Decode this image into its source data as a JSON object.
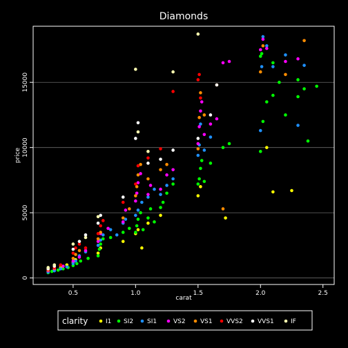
{
  "chart_data": {
    "type": "scatter",
    "title": "Diamonds",
    "xlabel": "carat",
    "ylabel": "price",
    "xlim": [
      0.18,
      2.59
    ],
    "ylim": [
      -500,
      19300
    ],
    "x_ticks": [
      0.5,
      1.0,
      1.5,
      2.0,
      2.5
    ],
    "x_tick_labels": [
      "0.5",
      "1.0",
      "1.5",
      "2.0",
      "2.5"
    ],
    "y_ticks": [
      0,
      5000,
      10000,
      15000
    ],
    "y_tick_labels": [
      "0",
      "5000",
      "10000",
      "15000"
    ],
    "grid": "horizontal",
    "legend_placement": "bottom",
    "legend_title": "clarity",
    "series": [
      {
        "name": "I1",
        "color": "#FFFF00",
        "points": [
          [
            0.3,
            500
          ],
          [
            0.35,
            650
          ],
          [
            0.4,
            800
          ],
          [
            0.45,
            1000
          ],
          [
            0.5,
            1200
          ],
          [
            0.52,
            1400
          ],
          [
            0.7,
            1900
          ],
          [
            0.72,
            2300
          ],
          [
            0.9,
            2800
          ],
          [
            1.0,
            3400
          ],
          [
            1.02,
            3700
          ],
          [
            1.05,
            2300
          ],
          [
            1.1,
            4200
          ],
          [
            1.2,
            4800
          ],
          [
            1.5,
            6300
          ],
          [
            1.52,
            7000
          ],
          [
            1.72,
            4600
          ],
          [
            2.05,
            10000
          ],
          [
            2.1,
            6600
          ],
          [
            2.25,
            6700
          ]
        ]
      },
      {
        "name": "SI2",
        "color": "#00FF00",
        "points": [
          [
            0.3,
            400
          ],
          [
            0.33,
            500
          ],
          [
            0.38,
            600
          ],
          [
            0.42,
            700
          ],
          [
            0.46,
            800
          ],
          [
            0.5,
            950
          ],
          [
            0.53,
            1100
          ],
          [
            0.56,
            1300
          ],
          [
            0.62,
            1500
          ],
          [
            0.7,
            1700
          ],
          [
            0.71,
            2200
          ],
          [
            0.72,
            2600
          ],
          [
            0.74,
            3000
          ],
          [
            0.8,
            3100
          ],
          [
            0.9,
            3500
          ],
          [
            0.95,
            3800
          ],
          [
            1.0,
            3500
          ],
          [
            1.01,
            4000
          ],
          [
            1.02,
            4500
          ],
          [
            1.04,
            5000
          ],
          [
            1.06,
            3700
          ],
          [
            1.1,
            4600
          ],
          [
            1.12,
            5300
          ],
          [
            1.15,
            4300
          ],
          [
            1.2,
            5400
          ],
          [
            1.22,
            5800
          ],
          [
            1.25,
            6500
          ],
          [
            1.3,
            7200
          ],
          [
            1.5,
            7200
          ],
          [
            1.51,
            7600
          ],
          [
            1.52,
            8400
          ],
          [
            1.53,
            9000
          ],
          [
            1.55,
            7400
          ],
          [
            1.6,
            8800
          ],
          [
            1.7,
            10000
          ],
          [
            1.75,
            10300
          ],
          [
            2.0,
            9700
          ],
          [
            2.02,
            12000
          ],
          [
            2.05,
            13500
          ],
          [
            2.1,
            14000
          ],
          [
            2.15,
            15000
          ],
          [
            2.2,
            12500
          ],
          [
            2.3,
            13900
          ],
          [
            2.35,
            14500
          ],
          [
            2.45,
            14700
          ],
          [
            2.0,
            17000
          ],
          [
            2.01,
            17200
          ],
          [
            2.1,
            16500
          ],
          [
            2.3,
            15200
          ],
          [
            2.38,
            10500
          ]
        ]
      },
      {
        "name": "SI1",
        "color": "#1E90FF",
        "points": [
          [
            0.3,
            450
          ],
          [
            0.35,
            550
          ],
          [
            0.4,
            700
          ],
          [
            0.45,
            850
          ],
          [
            0.5,
            1100
          ],
          [
            0.52,
            1300
          ],
          [
            0.55,
            1700
          ],
          [
            0.6,
            2000
          ],
          [
            0.7,
            2500
          ],
          [
            0.72,
            2900
          ],
          [
            0.74,
            3300
          ],
          [
            0.8,
            3700
          ],
          [
            0.85,
            3300
          ],
          [
            0.9,
            4200
          ],
          [
            0.92,
            4500
          ],
          [
            1.0,
            4800
          ],
          [
            1.02,
            5200
          ],
          [
            1.05,
            5800
          ],
          [
            1.1,
            6200
          ],
          [
            1.15,
            6800
          ],
          [
            1.2,
            6400
          ],
          [
            1.25,
            7100
          ],
          [
            1.3,
            7600
          ],
          [
            1.5,
            9400
          ],
          [
            1.51,
            10200
          ],
          [
            1.52,
            11800
          ],
          [
            1.55,
            9800
          ],
          [
            1.6,
            10800
          ],
          [
            2.0,
            11300
          ],
          [
            2.01,
            16200
          ],
          [
            2.02,
            18500
          ],
          [
            2.05,
            17800
          ],
          [
            2.1,
            16200
          ],
          [
            2.2,
            17100
          ],
          [
            2.3,
            11700
          ],
          [
            2.35,
            16300
          ]
        ]
      },
      {
        "name": "VS2",
        "color": "#FF00FF",
        "points": [
          [
            0.3,
            550
          ],
          [
            0.35,
            700
          ],
          [
            0.42,
            900
          ],
          [
            0.5,
            1300
          ],
          [
            0.55,
            1600
          ],
          [
            0.6,
            2100
          ],
          [
            0.7,
            2800
          ],
          [
            0.72,
            3400
          ],
          [
            0.78,
            3800
          ],
          [
            0.9,
            4300
          ],
          [
            0.92,
            5200
          ],
          [
            1.0,
            5900
          ],
          [
            1.01,
            6500
          ],
          [
            1.02,
            7300
          ],
          [
            1.04,
            8000
          ],
          [
            1.1,
            6400
          ],
          [
            1.12,
            7100
          ],
          [
            1.2,
            6800
          ],
          [
            1.25,
            7900
          ],
          [
            1.3,
            8300
          ],
          [
            1.5,
            10300
          ],
          [
            1.51,
            11600
          ],
          [
            1.52,
            12800
          ],
          [
            1.53,
            13500
          ],
          [
            1.55,
            11000
          ],
          [
            1.6,
            11800
          ],
          [
            1.65,
            12200
          ],
          [
            1.7,
            16500
          ],
          [
            1.75,
            16600
          ],
          [
            2.0,
            17500
          ],
          [
            2.02,
            18300
          ],
          [
            2.05,
            17600
          ],
          [
            2.2,
            16600
          ],
          [
            2.3,
            16800
          ]
        ]
      },
      {
        "name": "VS1",
        "color": "#FF8C00",
        "points": [
          [
            0.3,
            600
          ],
          [
            0.35,
            750
          ],
          [
            0.4,
            950
          ],
          [
            0.5,
            1500
          ],
          [
            0.52,
            1800
          ],
          [
            0.55,
            2100
          ],
          [
            0.7,
            3000
          ],
          [
            0.72,
            3500
          ],
          [
            0.9,
            4600
          ],
          [
            0.95,
            5300
          ],
          [
            1.0,
            6300
          ],
          [
            1.01,
            7000
          ],
          [
            1.02,
            7900
          ],
          [
            1.04,
            8700
          ],
          [
            1.1,
            7600
          ],
          [
            1.2,
            8300
          ],
          [
            1.25,
            8700
          ],
          [
            1.5,
            9900
          ],
          [
            1.51,
            12300
          ],
          [
            1.52,
            14200
          ],
          [
            1.55,
            12500
          ],
          [
            1.65,
            14800
          ],
          [
            1.7,
            5300
          ],
          [
            2.0,
            15800
          ],
          [
            2.02,
            17800
          ],
          [
            2.2,
            15600
          ],
          [
            2.35,
            18200
          ]
        ]
      },
      {
        "name": "VVS2",
        "color": "#FF0000",
        "points": [
          [
            0.3,
            650
          ],
          [
            0.35,
            800
          ],
          [
            0.4,
            1000
          ],
          [
            0.5,
            1900
          ],
          [
            0.52,
            2300
          ],
          [
            0.55,
            2600
          ],
          [
            0.6,
            2300
          ],
          [
            0.7,
            3400
          ],
          [
            0.72,
            4000
          ],
          [
            0.74,
            4400
          ],
          [
            0.9,
            5800
          ],
          [
            1.0,
            7200
          ],
          [
            1.02,
            8600
          ],
          [
            1.1,
            9200
          ],
          [
            1.2,
            9900
          ],
          [
            1.3,
            14300
          ],
          [
            1.5,
            15200
          ],
          [
            1.51,
            15600
          ],
          [
            1.52,
            13800
          ]
        ]
      },
      {
        "name": "VVS1",
        "color": "#FFFFFF",
        "points": [
          [
            0.3,
            700
          ],
          [
            0.35,
            900
          ],
          [
            0.5,
            2200
          ],
          [
            0.55,
            2800
          ],
          [
            0.6,
            3300
          ],
          [
            0.7,
            4200
          ],
          [
            0.72,
            4800
          ],
          [
            0.9,
            6200
          ],
          [
            1.0,
            10700
          ],
          [
            1.02,
            11900
          ],
          [
            1.1,
            8800
          ],
          [
            1.2,
            9100
          ],
          [
            1.3,
            9800
          ],
          [
            1.5,
            10700
          ],
          [
            1.6,
            12500
          ],
          [
            1.65,
            14800
          ]
        ]
      },
      {
        "name": "IF",
        "color": "#FFFFB0",
        "points": [
          [
            0.3,
            800
          ],
          [
            0.35,
            1000
          ],
          [
            0.5,
            2600
          ],
          [
            0.6,
            3100
          ],
          [
            0.7,
            4700
          ],
          [
            1.0,
            16000
          ],
          [
            1.02,
            11200
          ],
          [
            1.1,
            9700
          ],
          [
            1.3,
            15800
          ],
          [
            1.5,
            18700
          ]
        ]
      }
    ]
  }
}
